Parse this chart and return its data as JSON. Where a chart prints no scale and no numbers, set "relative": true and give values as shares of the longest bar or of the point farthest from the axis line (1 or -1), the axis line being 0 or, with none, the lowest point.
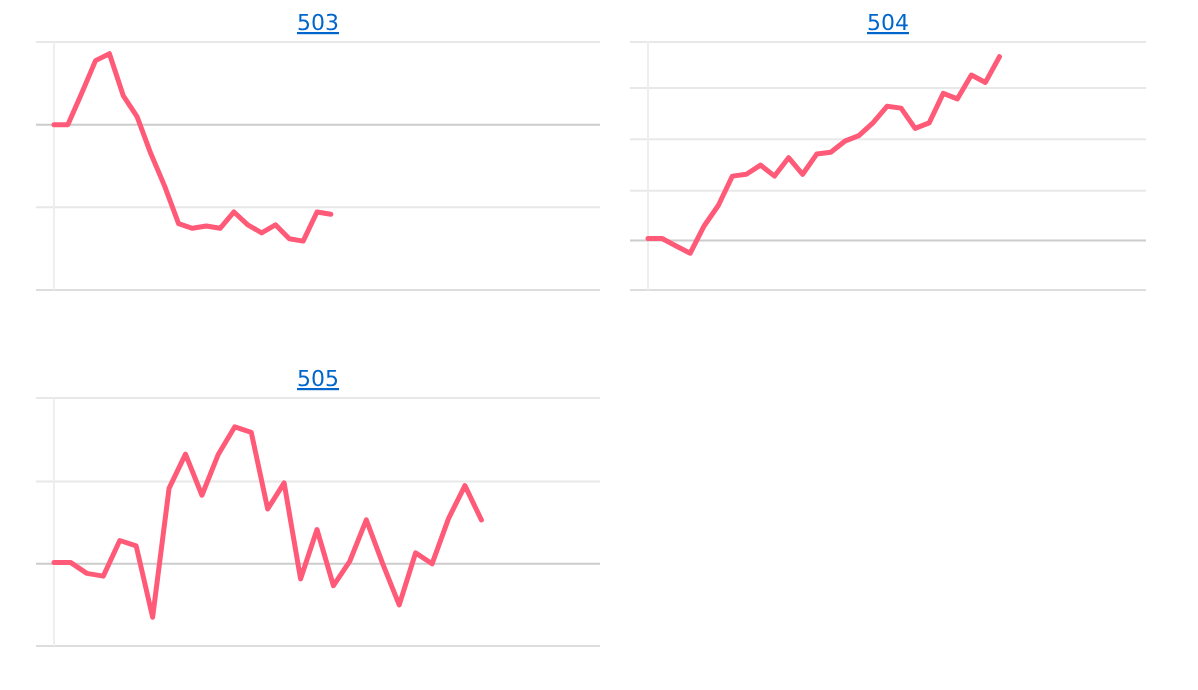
{
  "chart_data": [
    {
      "type": "line",
      "title": "503",
      "relative": true,
      "ref_lines": [
        {
          "axis": "y",
          "value": 0.71,
          "color": "#e8e8e8"
        },
        {
          "axis": "y",
          "value": -0.71,
          "color": "#e8e8e8"
        },
        {
          "axis": "y",
          "value": -1.42,
          "color": "#dddddd"
        }
      ],
      "categories": [
        null,
        null,
        null,
        null,
        null,
        null,
        null,
        null,
        null,
        null,
        null,
        null,
        null,
        null,
        null,
        null,
        null,
        null,
        null,
        null,
        null,
        null,
        null,
        null,
        null,
        null,
        null,
        null,
        null,
        null,
        null,
        null,
        null,
        null,
        null,
        null,
        null,
        null,
        null
      ],
      "series": [
        {
          "color": "#ff5a78",
          "values": [
            0,
            0,
            0.27,
            0.55,
            0.61,
            0.25,
            0.07,
            -0.25,
            -0.53,
            -0.85,
            -0.89,
            -0.87,
            -0.89,
            -0.75,
            -0.86,
            -0.93,
            -0.86,
            -0.98,
            -1,
            -0.75,
            -0.77,
            null,
            null,
            null,
            null,
            null,
            null,
            null,
            null,
            null,
            null,
            null,
            null,
            null,
            null,
            null,
            null,
            null,
            null
          ]
        }
      ]
    },
    {
      "type": "line",
      "title": "504",
      "relative": true,
      "ref_lines": [
        {
          "axis": "y",
          "value": 1.08,
          "color": "#e8e8e8"
        },
        {
          "axis": "y",
          "value": 0.83,
          "color": "#e8e8e8"
        },
        {
          "axis": "y",
          "value": 0.55,
          "color": "#e8e8e8"
        },
        {
          "axis": "y",
          "value": 0.27,
          "color": "#e8e8e8"
        },
        {
          "axis": "y",
          "value": -0.27,
          "color": "#dddddd"
        }
      ],
      "categories": [
        null,
        null,
        null,
        null,
        null,
        null,
        null,
        null,
        null,
        null,
        null,
        null,
        null,
        null,
        null,
        null,
        null,
        null,
        null,
        null,
        null,
        null,
        null,
        null,
        null,
        null,
        null,
        null,
        null,
        null,
        null,
        null,
        null,
        null,
        null
      ],
      "series": [
        {
          "color": "#ff5a78",
          "values": [
            0.01,
            0.01,
            -0.03,
            -0.07,
            0.08,
            0.19,
            0.35,
            0.36,
            0.41,
            0.35,
            0.45,
            0.36,
            0.47,
            0.48,
            0.54,
            0.57,
            0.64,
            0.73,
            0.72,
            0.61,
            0.64,
            0.8,
            0.77,
            0.9,
            0.86,
            1,
            null,
            null,
            null,
            null,
            null,
            null,
            null,
            null,
            null
          ]
        }
      ]
    },
    {
      "type": "line",
      "title": "505",
      "relative": true,
      "ref_lines": [
        {
          "axis": "y",
          "value": 1.21,
          "color": "#e8e8e8"
        },
        {
          "axis": "y",
          "value": 0.6,
          "color": "#e8e8e8"
        },
        {
          "axis": "y",
          "value": -0.6,
          "color": "#dddddd"
        }
      ],
      "categories": [
        null,
        null,
        null,
        null,
        null,
        null,
        null,
        null,
        null,
        null,
        null,
        null,
        null,
        null,
        null,
        null,
        null,
        null,
        null,
        null,
        null,
        null,
        null,
        null,
        null,
        null,
        null,
        null,
        null,
        null,
        null,
        null,
        null
      ],
      "series": [
        {
          "color": "#ff5a78",
          "values": [
            0.01,
            0.01,
            -0.07,
            -0.09,
            0.17,
            0.13,
            -0.39,
            0.55,
            0.8,
            0.5,
            0.8,
            1,
            0.96,
            0.4,
            0.59,
            -0.11,
            0.25,
            -0.16,
            0.02,
            0.32,
            0,
            -0.3,
            0.08,
            0,
            0.33,
            0.57,
            0.32,
            null,
            null,
            null,
            null,
            null,
            null
          ]
        }
      ]
    }
  ]
}
